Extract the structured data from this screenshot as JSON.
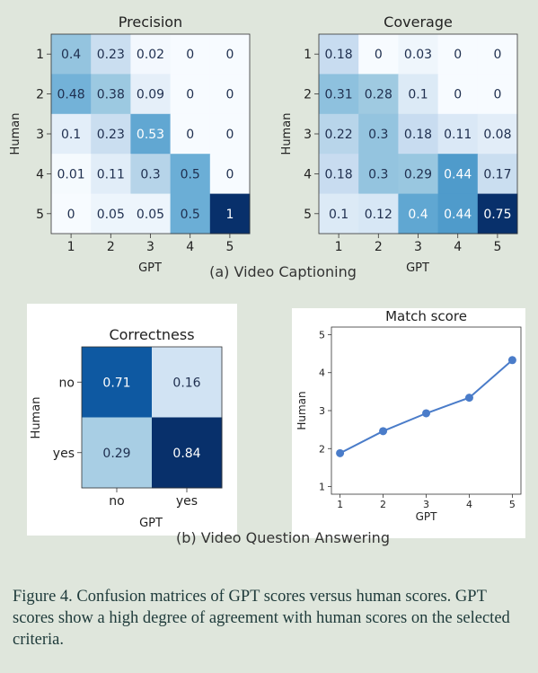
{
  "caption": "Figure 4. Confusion matrices of GPT scores versus human scores. GPT scores show a high degree of agreement with human scores on the selected criteria.",
  "sublabels": {
    "a": "(a) Video Captioning",
    "b": "(b) Video Question Answering"
  },
  "chart_data": [
    {
      "type": "heatmap",
      "title": "Precision",
      "xlabel": "GPT",
      "ylabel": "Human",
      "x_categories": [
        "1",
        "2",
        "3",
        "4",
        "5"
      ],
      "y_categories": [
        "1",
        "2",
        "3",
        "4",
        "5"
      ],
      "values": [
        [
          0.4,
          0.23,
          0.02,
          0.0,
          0.0
        ],
        [
          0.48,
          0.38,
          0.09,
          0.0,
          0.0
        ],
        [
          0.1,
          0.23,
          0.53,
          0.0,
          0.0
        ],
        [
          0.01,
          0.11,
          0.3,
          0.5,
          0.0
        ],
        [
          0.0,
          0.05,
          0.05,
          0.5,
          1.0
        ]
      ],
      "colormap": "Blues"
    },
    {
      "type": "heatmap",
      "title": "Coverage",
      "xlabel": "GPT",
      "ylabel": "Human",
      "x_categories": [
        "1",
        "2",
        "3",
        "4",
        "5"
      ],
      "y_categories": [
        "1",
        "2",
        "3",
        "4",
        "5"
      ],
      "values": [
        [
          0.18,
          0.0,
          0.03,
          0.0,
          0.0
        ],
        [
          0.31,
          0.28,
          0.1,
          0.0,
          0.0
        ],
        [
          0.22,
          0.3,
          0.18,
          0.11,
          0.08
        ],
        [
          0.18,
          0.3,
          0.29,
          0.44,
          0.17
        ],
        [
          0.1,
          0.12,
          0.4,
          0.44,
          0.75
        ]
      ],
      "colormap": "Blues"
    },
    {
      "type": "heatmap",
      "title": "Correctness",
      "xlabel": "GPT",
      "ylabel": "Human",
      "x_categories": [
        "no",
        "yes"
      ],
      "y_categories": [
        "no",
        "yes"
      ],
      "values": [
        [
          0.71,
          0.16
        ],
        [
          0.29,
          0.84
        ]
      ],
      "colormap": "Blues"
    },
    {
      "type": "line",
      "title": "Match score",
      "xlabel": "GPT",
      "ylabel": "Human",
      "x": [
        1,
        2,
        3,
        4,
        5
      ],
      "y": [
        1.88,
        2.46,
        2.93,
        3.34,
        4.33
      ],
      "xlim": [
        0.8,
        5.2
      ],
      "ylim": [
        0.8,
        5.2
      ],
      "xticks": [
        1,
        2,
        3,
        4,
        5
      ],
      "yticks": [
        1,
        2,
        3,
        4,
        5
      ],
      "color": "#4a7cc9",
      "grid": false
    }
  ]
}
